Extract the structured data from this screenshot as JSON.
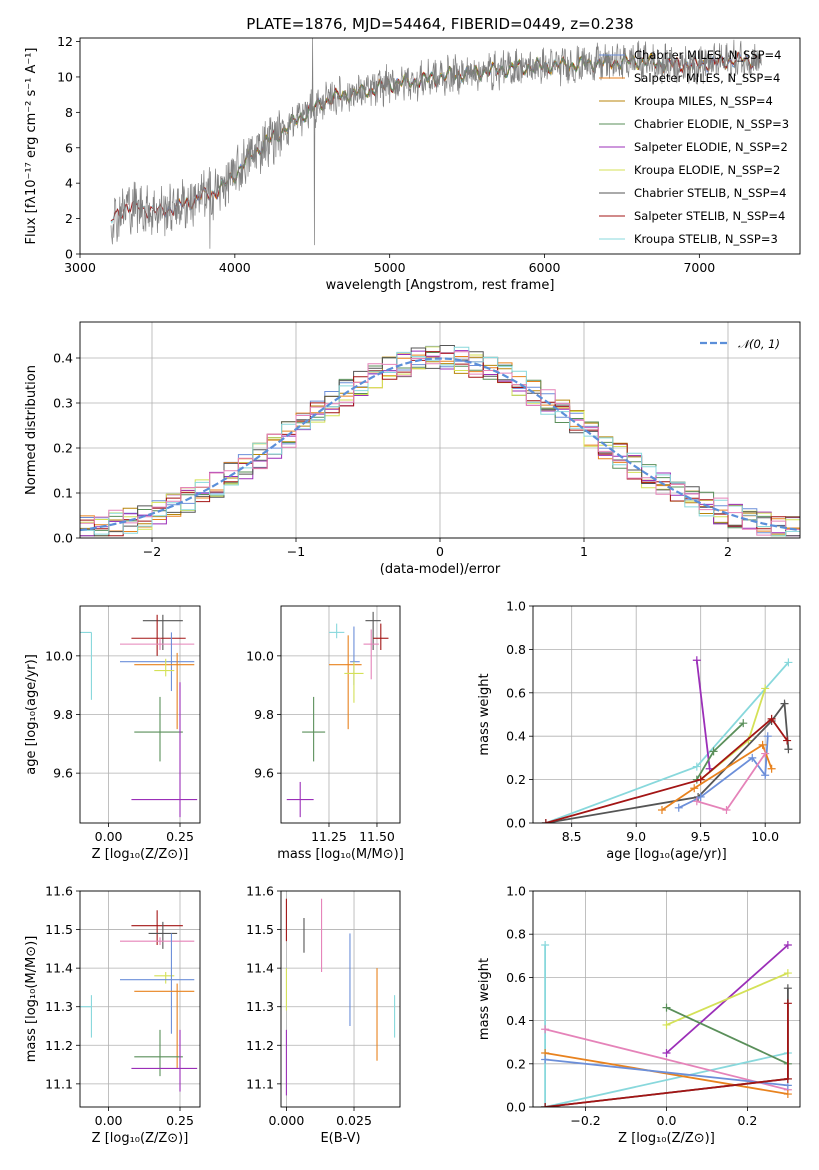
{
  "colors": {
    "chabrier_miles": "#6c8fd9",
    "salpeter_miles": "#e8821e",
    "kroupa_miles": "#b8860b",
    "chabrier_elodie": "#5a8f5a",
    "salpeter_elodie": "#9b2fb8",
    "kroupa_elodie": "#d4e157",
    "chabrier_stelib": "#555555",
    "salpeter_stelib": "#a31515",
    "kroupa_stelib": "#88d8dc",
    "pink": "#e583b9",
    "normal": "#5b8fd9"
  },
  "chart_data": [
    {
      "id": "spectrum",
      "type": "line",
      "title": "PLATE=1876, MJD=54464, FIBERID=0449, z=0.238",
      "xlabel": "wavelength [Angstrom, rest frame]",
      "ylabel": "Flux [fλ10⁻¹⁷ erg cm⁻² s⁻¹ A⁻¹]",
      "xlim": [
        3000,
        7650
      ],
      "ylim": [
        0,
        12.2
      ],
      "xticks": [
        "3000",
        "4000",
        "5000",
        "6000",
        "7000"
      ],
      "yticks": [
        "0",
        "2",
        "4",
        "6",
        "8",
        "10",
        "12"
      ],
      "grid": false,
      "legend_position": "top-right",
      "legend": [
        "Chabrier MILES, N_SSP=4",
        "Salpeter MILES, N_SSP=4",
        "Kroupa MILES, N_SSP=4",
        "Chabrier ELODIE, N_SSP=3",
        "Salpeter ELODIE, N_SSP=2",
        "Kroupa ELODIE, N_SSP=2",
        "Chabrier STELIB, N_SSP=4",
        "Salpeter STELIB, N_SSP=4",
        "Kroupa STELIB, N_SSP=3"
      ],
      "continuum": {
        "x": [
          3200,
          3300,
          3400,
          3500,
          3600,
          3700,
          3800,
          3900,
          4000,
          4100,
          4200,
          4300,
          4400,
          4500,
          4600,
          4700,
          4800,
          4900,
          5000,
          5200,
          5400,
          5600,
          5800,
          6000,
          6200,
          6400,
          6600,
          6800,
          7000,
          7200,
          7400
        ],
        "y": [
          1.8,
          2.7,
          2.6,
          2.4,
          2.6,
          2.9,
          3.3,
          3.6,
          4.5,
          5.5,
          6.3,
          6.9,
          7.6,
          8.2,
          8.7,
          9.0,
          9.1,
          9.3,
          9.6,
          9.8,
          10.1,
          10.3,
          10.5,
          10.6,
          10.7,
          10.8,
          10.9,
          10.7,
          10.7,
          10.9,
          11.0
        ]
      }
    },
    {
      "id": "residuals",
      "type": "histogram",
      "xlabel": "(data-model)/error",
      "ylabel": "Normed distribution",
      "xlim": [
        -2.5,
        2.5
      ],
      "ylim": [
        0,
        0.48
      ],
      "xticks": [
        "−2",
        "−1",
        "0",
        "1",
        "2"
      ],
      "yticks": [
        "0.0",
        "0.1",
        "0.2",
        "0.3",
        "0.4"
      ],
      "grid": true,
      "legend_position": "top-right",
      "normal_label": "𝒩(0, 1)"
    },
    {
      "id": "Z_age",
      "type": "scatter",
      "xlabel": "Z [log₁₀(Z/Z⊙)]",
      "ylabel": "age  [log₁₀(age/yr)]",
      "xlim": [
        -0.1,
        0.32
      ],
      "ylim": [
        9.43,
        10.17
      ],
      "xticks": [
        "0.00",
        "0.25"
      ],
      "yticks": [
        "9.6",
        "9.8",
        "10.0"
      ],
      "grid": true,
      "points": [
        {
          "color": "kroupa_stelib",
          "x": -0.06,
          "xerr": [
            0.36,
            0.0
          ],
          "y": 10.08,
          "yerr": [
            0.23,
            0.0
          ]
        },
        {
          "color": "chabrier_stelib",
          "x": 0.19,
          "xerr": [
            0.07,
            0.07
          ],
          "y": 10.12,
          "yerr": [
            0.1,
            0.02
          ]
        },
        {
          "color": "salpeter_stelib",
          "x": 0.17,
          "xerr": [
            0.09,
            0.1
          ],
          "y": 10.06,
          "yerr": [
            0.06,
            0.08
          ]
        },
        {
          "color": "pink",
          "x": 0.18,
          "xerr": [
            0.14,
            0.12
          ],
          "y": 10.04,
          "yerr": [
            0.02,
            0.02
          ]
        },
        {
          "color": "chabrier_miles",
          "x": 0.22,
          "xerr": [
            0.18,
            0.08
          ],
          "y": 9.98,
          "yerr": [
            0.1,
            0.1
          ]
        },
        {
          "color": "salpeter_miles",
          "x": 0.24,
          "xerr": [
            0.15,
            0.06
          ],
          "y": 9.97,
          "yerr": [
            0.22,
            0.04
          ]
        },
        {
          "color": "kroupa_elodie",
          "x": 0.2,
          "xerr": [
            0.04,
            0.03
          ],
          "y": 9.95,
          "yerr": [
            0.02,
            0.04
          ]
        },
        {
          "color": "chabrier_elodie",
          "x": 0.18,
          "xerr": [
            0.09,
            0.08
          ],
          "y": 9.74,
          "yerr": [
            0.1,
            0.12
          ]
        },
        {
          "color": "salpeter_elodie",
          "x": 0.25,
          "xerr": [
            0.17,
            0.06
          ],
          "y": 9.51,
          "yerr": [
            0.06,
            0.4
          ]
        }
      ]
    },
    {
      "id": "mass_age",
      "type": "scatter",
      "xlabel": "mass [log₁₀(M/M⊙)]",
      "ylabel": "",
      "xlim": [
        11.0,
        11.62
      ],
      "ylim": [
        9.43,
        10.17
      ],
      "xticks": [
        "11.25",
        "11.50"
      ],
      "yticks": [
        "9.6",
        "9.8",
        "10.0"
      ],
      "grid": true,
      "points": [
        {
          "color": "kroupa_stelib",
          "x": 11.29,
          "xerr": [
            0.04,
            0.04
          ],
          "y": 10.08,
          "yerr": [
            0.02,
            0.03
          ]
        },
        {
          "color": "chabrier_stelib",
          "x": 11.48,
          "xerr": [
            0.04,
            0.04
          ],
          "y": 10.12,
          "yerr": [
            0.1,
            0.03
          ]
        },
        {
          "color": "salpeter_stelib",
          "x": 11.52,
          "xerr": [
            0.04,
            0.04
          ],
          "y": 10.06,
          "yerr": [
            0.04,
            0.05
          ]
        },
        {
          "color": "pink",
          "x": 11.47,
          "xerr": [
            0.04,
            0.04
          ],
          "y": 10.04,
          "yerr": [
            0.12,
            0.05
          ]
        },
        {
          "color": "chabrier_miles",
          "x": 11.38,
          "xerr": [
            0.02,
            0.03
          ],
          "y": 9.98,
          "yerr": [
            0.08,
            0.12
          ]
        },
        {
          "color": "salpeter_miles",
          "x": 11.35,
          "xerr": [
            0.1,
            0.07
          ],
          "y": 9.97,
          "yerr": [
            0.22,
            0.1
          ]
        },
        {
          "color": "kroupa_elodie",
          "x": 11.38,
          "xerr": [
            0.05,
            0.05
          ],
          "y": 9.94,
          "yerr": [
            0.1,
            0.04
          ]
        },
        {
          "color": "chabrier_elodie",
          "x": 11.17,
          "xerr": [
            0.06,
            0.06
          ],
          "y": 9.74,
          "yerr": [
            0.1,
            0.12
          ]
        },
        {
          "color": "salpeter_elodie",
          "x": 11.1,
          "xerr": [
            0.07,
            0.07
          ],
          "y": 9.51,
          "yerr": [
            0.06,
            0.06
          ]
        }
      ]
    },
    {
      "id": "age_weight",
      "type": "line",
      "xlabel": "age  [log₁₀(age/yr)]",
      "ylabel": "mass weight",
      "xlim": [
        8.2,
        10.27
      ],
      "ylim": [
        0,
        1.0
      ],
      "xticks": [
        "8.5",
        "9.0",
        "9.5",
        "10.0"
      ],
      "yticks": [
        "0.0",
        "0.2",
        "0.4",
        "0.6",
        "0.8",
        "1.0"
      ],
      "grid": true,
      "series": [
        {
          "color": "kroupa_stelib",
          "x": [
            8.3,
            9.47,
            10.18
          ],
          "y": [
            0.0,
            0.26,
            0.74
          ]
        },
        {
          "color": "salpeter_elodie",
          "x": [
            9.47,
            9.57
          ],
          "y": [
            0.75,
            0.25
          ]
        },
        {
          "color": "kroupa_elodie",
          "x": [
            9.5,
            9.87,
            10.0
          ],
          "y": [
            0.2,
            0.38,
            0.62
          ]
        },
        {
          "color": "chabrier_elodie",
          "x": [
            9.47,
            9.6,
            9.83
          ],
          "y": [
            0.2,
            0.33,
            0.46
          ]
        },
        {
          "color": "chabrier_stelib",
          "x": [
            8.3,
            9.48,
            10.05,
            10.15,
            10.18
          ],
          "y": [
            0.0,
            0.12,
            0.47,
            0.55,
            0.34
          ]
        },
        {
          "color": "salpeter_stelib",
          "x": [
            8.3,
            9.5,
            10.05,
            10.17
          ],
          "y": [
            0.0,
            0.2,
            0.48,
            0.38
          ]
        },
        {
          "color": "chabrier_miles",
          "x": [
            9.33,
            9.5,
            9.9,
            10.0,
            10.02
          ],
          "y": [
            0.07,
            0.12,
            0.3,
            0.22,
            0.4
          ]
        },
        {
          "color": "salpeter_miles",
          "x": [
            9.2,
            9.45,
            9.98,
            10.05
          ],
          "y": [
            0.06,
            0.16,
            0.36,
            0.25
          ]
        },
        {
          "color": "pink",
          "x": [
            9.47,
            9.7,
            10.0
          ],
          "y": [
            0.1,
            0.06,
            0.32
          ]
        }
      ]
    },
    {
      "id": "Z_mass",
      "type": "scatter",
      "xlabel": "Z [log₁₀(Z/Z⊙)]",
      "ylabel": "mass [log₁₀(M/M⊙)]",
      "xlim": [
        -0.1,
        0.32
      ],
      "ylim": [
        11.04,
        11.6
      ],
      "xticks": [
        "0.00",
        "0.25"
      ],
      "yticks": [
        "11.1",
        "11.2",
        "11.3",
        "11.4",
        "11.5",
        "11.6"
      ],
      "grid": true,
      "points": [
        {
          "color": "kroupa_stelib",
          "x": -0.06,
          "xerr": [
            0.36,
            0.0
          ],
          "y": 11.3,
          "yerr": [
            0.08,
            0.03
          ]
        },
        {
          "color": "salpeter_stelib",
          "x": 0.17,
          "xerr": [
            0.09,
            0.09
          ],
          "y": 11.51,
          "yerr": [
            0.05,
            0.04
          ]
        },
        {
          "color": "chabrier_stelib",
          "x": 0.19,
          "xerr": [
            0.05,
            0.05
          ],
          "y": 11.49,
          "yerr": [
            0.04,
            0.03
          ]
        },
        {
          "color": "pink",
          "x": 0.18,
          "xerr": [
            0.14,
            0.12
          ],
          "y": 11.47,
          "yerr": [
            0.01,
            0.01
          ]
        },
        {
          "color": "kroupa_elodie",
          "x": 0.2,
          "xerr": [
            0.04,
            0.03
          ],
          "y": 11.38,
          "yerr": [
            0.02,
            0.01
          ]
        },
        {
          "color": "chabrier_miles",
          "x": 0.22,
          "xerr": [
            0.18,
            0.08
          ],
          "y": 11.37,
          "yerr": [
            0.14,
            0.12
          ]
        },
        {
          "color": "salpeter_miles",
          "x": 0.24,
          "xerr": [
            0.15,
            0.06
          ],
          "y": 11.34,
          "yerr": [
            0.2,
            0.02
          ]
        },
        {
          "color": "chabrier_elodie",
          "x": 0.18,
          "xerr": [
            0.09,
            0.08
          ],
          "y": 11.17,
          "yerr": [
            0.05,
            0.07
          ]
        },
        {
          "color": "salpeter_elodie",
          "x": 0.25,
          "xerr": [
            0.17,
            0.06
          ],
          "y": 11.14,
          "yerr": [
            0.06,
            0.1
          ]
        }
      ]
    },
    {
      "id": "ebv_mass",
      "type": "scatter",
      "xlabel": "E(B-V)",
      "ylabel": "",
      "xlim": [
        -0.002,
        0.042
      ],
      "ylim": [
        11.04,
        11.6
      ],
      "xticks": [
        "0.000",
        "0.025"
      ],
      "yticks": [
        "11.1",
        "11.2",
        "11.3",
        "11.4",
        "11.5",
        "11.6"
      ],
      "grid": true,
      "points": [
        {
          "color": "salpeter_stelib",
          "x": 0.0,
          "xerr": [
            0,
            0
          ],
          "y": 11.52,
          "yerr": [
            0.05,
            0.06
          ]
        },
        {
          "color": "kroupa_elodie",
          "x": 0.0,
          "xerr": [
            0,
            0
          ],
          "y": 11.34,
          "yerr": [
            0.05,
            0.06
          ]
        },
        {
          "color": "salpeter_elodie",
          "x": 0.0,
          "xerr": [
            0,
            0
          ],
          "y": 11.15,
          "yerr": [
            0.08,
            0.09
          ]
        },
        {
          "color": "chabrier_stelib",
          "x": 0.0065,
          "xerr": [
            0,
            0
          ],
          "y": 11.49,
          "yerr": [
            0.05,
            0.04
          ]
        },
        {
          "color": "pink",
          "x": 0.013,
          "xerr": [
            0,
            0
          ],
          "y": 11.47,
          "yerr": [
            0.08,
            0.11
          ]
        },
        {
          "color": "chabrier_miles",
          "x": 0.0235,
          "xerr": [
            0,
            0
          ],
          "y": 11.37,
          "yerr": [
            0.12,
            0.12
          ]
        },
        {
          "color": "salpeter_miles",
          "x": 0.0335,
          "xerr": [
            0,
            0
          ],
          "y": 11.28,
          "yerr": [
            0.12,
            0.12
          ]
        },
        {
          "color": "kroupa_stelib",
          "x": 0.04,
          "xerr": [
            0,
            0
          ],
          "y": 11.3,
          "yerr": [
            0.08,
            0.03
          ]
        }
      ]
    },
    {
      "id": "Z_weight",
      "type": "line",
      "xlabel": "Z [log₁₀(Z/Z⊙)]",
      "ylabel": "mass weight",
      "xlim": [
        -0.33,
        0.33
      ],
      "ylim": [
        0,
        1.0
      ],
      "xticks": [
        "−0.2",
        "0.0",
        "0.2"
      ],
      "yticks": [
        "0.0",
        "0.2",
        "0.4",
        "0.6",
        "0.8",
        "1.0"
      ],
      "grid": true,
      "series": [
        {
          "color": "kroupa_stelib",
          "x": [
            -0.3,
            -0.3,
            0.3
          ],
          "y": [
            0.75,
            0.0,
            0.25
          ]
        },
        {
          "color": "salpeter_elodie",
          "x": [
            0.0,
            0.3
          ],
          "y": [
            0.25,
            0.75
          ]
        },
        {
          "color": "kroupa_elodie",
          "x": [
            0.0,
            0.3
          ],
          "y": [
            0.38,
            0.62
          ]
        },
        {
          "color": "chabrier_elodie",
          "x": [
            0.0,
            0.3
          ],
          "y": [
            0.46,
            0.2
          ]
        },
        {
          "color": "pink",
          "x": [
            -0.3,
            0.3
          ],
          "y": [
            0.36,
            0.08
          ]
        },
        {
          "color": "salpeter_miles",
          "x": [
            -0.3,
            0.3
          ],
          "y": [
            0.25,
            0.06
          ]
        },
        {
          "color": "chabrier_miles",
          "x": [
            -0.3,
            0.3
          ],
          "y": [
            0.22,
            0.1
          ]
        },
        {
          "color": "chabrier_stelib",
          "x": [
            -0.3,
            0.3,
            0.3
          ],
          "y": [
            0.0,
            0.13,
            0.55
          ]
        },
        {
          "color": "salpeter_stelib",
          "x": [
            -0.3,
            0.3,
            0.3
          ],
          "y": [
            0.0,
            0.13,
            0.48
          ]
        }
      ]
    }
  ]
}
